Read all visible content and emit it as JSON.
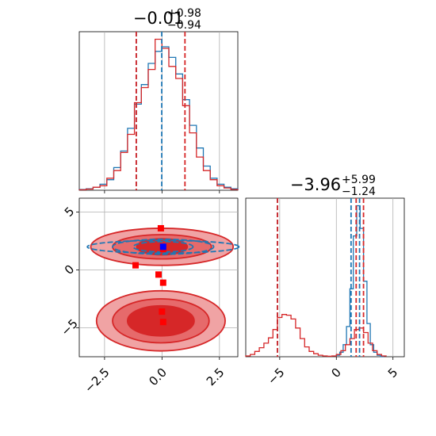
{
  "colors": {
    "red": "#d62728",
    "blue": "#1f77b4",
    "marker_red": "#ff0000",
    "marker_blue": "#0000ff",
    "grid": "#b0b0b0",
    "fill_light": "#f0a3a4",
    "fill_dark": "#d62728"
  },
  "chart_data": [
    {
      "id": "top-left-hist",
      "type": "histogram",
      "title": {
        "value": "−0.01",
        "sup": "+0.98",
        "sub": "−0.94"
      },
      "xlim": [
        -3.6,
        3.3
      ],
      "grid": true,
      "series": [
        {
          "color": "#1f77b4",
          "x_edges": [
            -3.6,
            -3.3,
            -3.0,
            -2.7,
            -2.4,
            -2.1,
            -1.8,
            -1.5,
            -1.2,
            -0.9,
            -0.6,
            -0.3,
            0.0,
            0.3,
            0.6,
            0.9,
            1.2,
            1.5,
            1.8,
            2.1,
            2.4,
            2.7,
            3.0,
            3.3
          ],
          "counts": [
            0.5,
            1,
            2,
            4,
            7,
            15,
            26,
            41,
            57,
            70,
            84,
            92,
            95,
            88,
            77,
            60,
            43,
            28,
            16,
            8,
            4,
            2,
            1
          ]
        },
        {
          "color": "#d62728",
          "x_edges": [
            -3.6,
            -3.3,
            -3.0,
            -2.7,
            -2.4,
            -2.1,
            -1.8,
            -1.5,
            -1.2,
            -0.9,
            -0.6,
            -0.3,
            0.0,
            0.3,
            0.6,
            0.9,
            1.2,
            1.5,
            1.8,
            2.1,
            2.4,
            2.7,
            3.0,
            3.3
          ],
          "counts": [
            0.3,
            0.8,
            2,
            3,
            8,
            13,
            25,
            37,
            58,
            68,
            80,
            100,
            94,
            82,
            74,
            56,
            38,
            22,
            13,
            7,
            3,
            1.5,
            0.5
          ]
        }
      ],
      "quantile_lines": [
        {
          "x": -1.12,
          "color": "#1f77b4"
        },
        {
          "x": -1.12,
          "color": "#d62728"
        },
        {
          "x": -0.01,
          "color": "#1f77b4"
        },
        {
          "x": 1.0,
          "color": "#d62728"
        }
      ]
    },
    {
      "id": "bottom-right-hist",
      "type": "histogram",
      "title": {
        "value": "−3.96",
        "sup": "+5.99",
        "sub": "−1.24"
      },
      "xlim": [
        -8,
        6
      ],
      "xticks": [
        "−5",
        "0",
        "5"
      ],
      "xtick_values": [
        -5,
        0,
        5
      ],
      "grid": true,
      "series": [
        {
          "color": "#1f77b4",
          "x_edges": [
            0.0,
            0.3,
            0.6,
            0.9,
            1.2,
            1.5,
            1.8,
            2.1,
            2.4,
            2.7,
            3.0,
            3.3,
            3.6,
            3.9,
            4.2
          ],
          "counts": [
            1,
            3,
            8,
            20,
            45,
            80,
            100,
            85,
            50,
            22,
            8,
            3,
            1,
            0
          ]
        },
        {
          "color": "#d62728",
          "x_edges": [
            -8.0,
            -7.6,
            -7.2,
            -6.8,
            -6.4,
            -6.0,
            -5.6,
            -5.2,
            -4.8,
            -4.4,
            -4.0,
            -3.6,
            -3.2,
            -2.8,
            -2.4,
            -2.0,
            -1.6,
            -1.2,
            -0.8,
            -0.4,
            0.0,
            0.4,
            0.8,
            1.2,
            1.6,
            2.0,
            2.4,
            2.8,
            3.2,
            3.6,
            4.0,
            4.4
          ],
          "counts": [
            0.5,
            1.5,
            3.5,
            6,
            9,
            12.5,
            18,
            26,
            28,
            27.5,
            25,
            19,
            12,
            6.5,
            3.5,
            2,
            1,
            0.5,
            0.3,
            0.5,
            1.5,
            4,
            8,
            12,
            18,
            19,
            16,
            9,
            4,
            1.5,
            0.5,
            0.3
          ]
        }
      ],
      "quantile_lines": [
        {
          "x": -5.2,
          "color": "#1f77b4"
        },
        {
          "x": -5.2,
          "color": "#d62728"
        },
        {
          "x": 1.3,
          "color": "#1f77b4"
        },
        {
          "x": 1.75,
          "color": "#d62728"
        },
        {
          "x": 2.05,
          "color": "#1f77b4"
        },
        {
          "x": 2.4,
          "color": "#d62728"
        }
      ]
    },
    {
      "id": "bottom-left-2d",
      "type": "contour",
      "xlim": [
        -3.6,
        3.3
      ],
      "ylim": [
        -7.5,
        6.2
      ],
      "xticks": [
        "−2.5",
        "0.0",
        "2.5"
      ],
      "xtick_values": [
        -2.5,
        0.0,
        2.5
      ],
      "yticks": [
        "−5",
        "0",
        "5"
      ],
      "ytick_values": [
        -5,
        0,
        5
      ],
      "grid": true,
      "red_modes": [
        {
          "cx": 0.0,
          "cy": 2.0,
          "levels": [
            {
              "rx": 3.1,
              "ry": 1.6
            },
            {
              "rx": 2.15,
              "ry": 1.05
            },
            {
              "rx": 1.1,
              "ry": 0.7
            }
          ]
        },
        {
          "cx": -0.05,
          "cy": -4.4,
          "levels": [
            {
              "rx": 2.8,
              "ry": 2.6
            },
            {
              "rx": 2.1,
              "ry": 1.9
            },
            {
              "rx": 1.45,
              "ry": 1.3
            }
          ]
        }
      ],
      "blue_mode": {
        "cx": 0.05,
        "cy": 2.0,
        "levels": [
          {
            "rx": 3.3,
            "ry": 0.55
          },
          {
            "rx": 2.2,
            "ry": 0.65
          },
          {
            "rx": 1.3,
            "ry": 0.45
          }
        ]
      },
      "red_points": [
        [
          -0.05,
          3.6
        ],
        [
          -1.15,
          0.4
        ],
        [
          -0.15,
          -0.4
        ],
        [
          0.05,
          -1.1
        ],
        [
          0.05,
          1.8
        ],
        [
          0.0,
          -3.6
        ],
        [
          0.05,
          -4.5
        ]
      ],
      "blue_points": [
        [
          0.05,
          2.0
        ]
      ]
    }
  ]
}
